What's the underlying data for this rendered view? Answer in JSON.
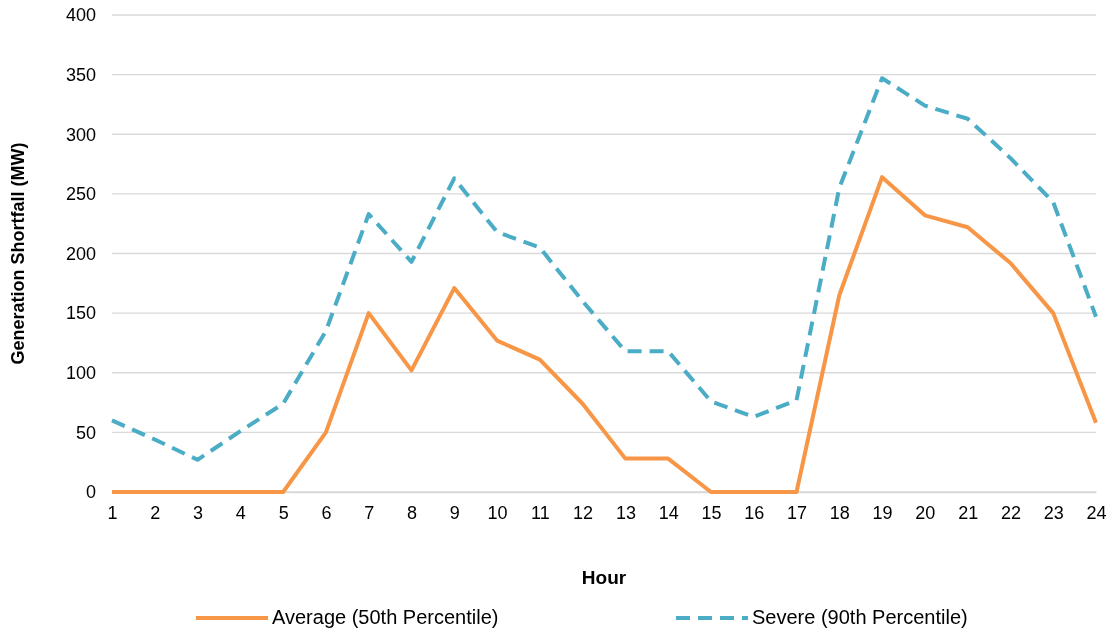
{
  "chart_data": {
    "type": "line",
    "xlabel": "Hour",
    "ylabel": "Generation Shortfall (MW)",
    "x": [
      1,
      2,
      3,
      4,
      5,
      6,
      7,
      8,
      9,
      10,
      11,
      12,
      13,
      14,
      15,
      16,
      17,
      18,
      19,
      20,
      21,
      22,
      23,
      24
    ],
    "xlim": [
      1,
      24
    ],
    "xticks": [
      1,
      2,
      3,
      4,
      5,
      6,
      7,
      8,
      9,
      10,
      11,
      12,
      13,
      14,
      15,
      16,
      17,
      18,
      19,
      20,
      21,
      22,
      23,
      24
    ],
    "ylim": [
      0,
      400
    ],
    "yticks": [
      0,
      50,
      100,
      150,
      200,
      250,
      300,
      350,
      400
    ],
    "grid": "y",
    "legend": "bottom",
    "marker": "none",
    "series": [
      {
        "name": "Average (50th Percentile)",
        "color": "#f79646",
        "line_style": "solid",
        "values": [
          0,
          0,
          0,
          0,
          0,
          50,
          150,
          102,
          171,
          127,
          111,
          74,
          28,
          28,
          0,
          0,
          0,
          165,
          264,
          232,
          222,
          192,
          150,
          58
        ]
      },
      {
        "name": "Severe (90th Percentile)",
        "color": "#4bacc6",
        "line_style": "dashed",
        "values": [
          60,
          44,
          27,
          51,
          74,
          135,
          233,
          193,
          263,
          218,
          205,
          160,
          118,
          118,
          76,
          63,
          77,
          255,
          347,
          324,
          313,
          280,
          243,
          147
        ]
      }
    ]
  }
}
